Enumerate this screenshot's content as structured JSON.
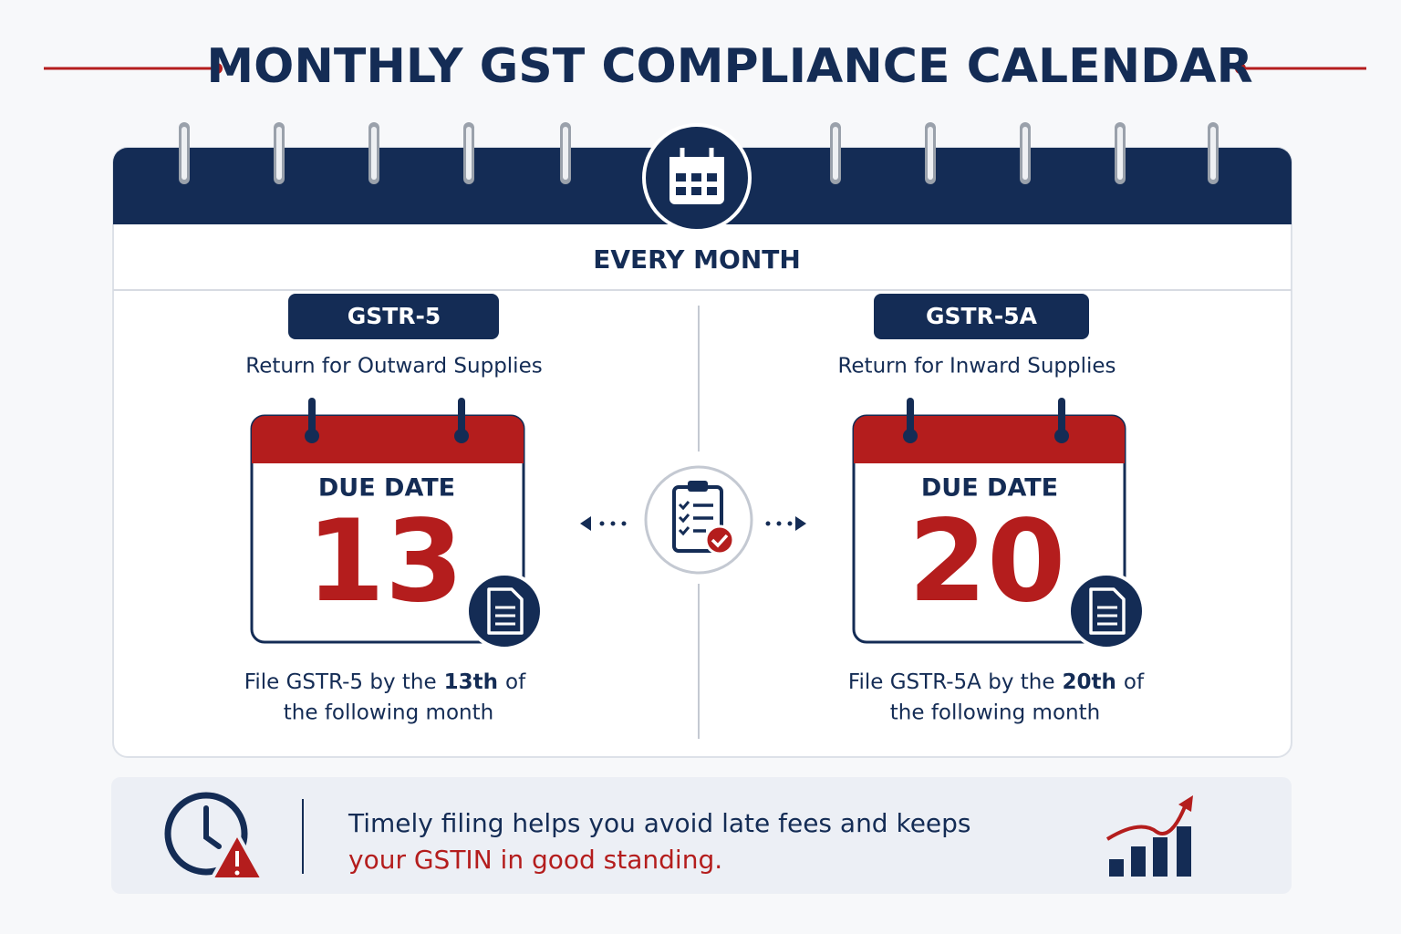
{
  "header": {
    "title": "MONTHLY GST COMPLIANCE CALENDAR"
  },
  "calendar": {
    "label": "EVERY MONTH",
    "returns": [
      {
        "code": "GSTR-5",
        "description": "Return for Outward Supplies",
        "due_label": "DUE DATE",
        "day": 13,
        "note_line1_start": "File GSTR-5 by the",
        "note_emphasis": "13th",
        "note_line1_end": "of",
        "note_line2": "the following month"
      },
      {
        "code": "GSTR-5A",
        "description": "Return for Inward Supplies",
        "due_label": "DUE DATE",
        "day": 20,
        "note_line1_start": "File GSTR-5A by the",
        "note_emphasis": "20th",
        "note_line1_end": "of",
        "note_line2": "the following month"
      }
    ]
  },
  "footer": {
    "line1": "Timely filing helps you avoid late fees and keeps",
    "line2": "your GSTIN in good standing."
  }
}
